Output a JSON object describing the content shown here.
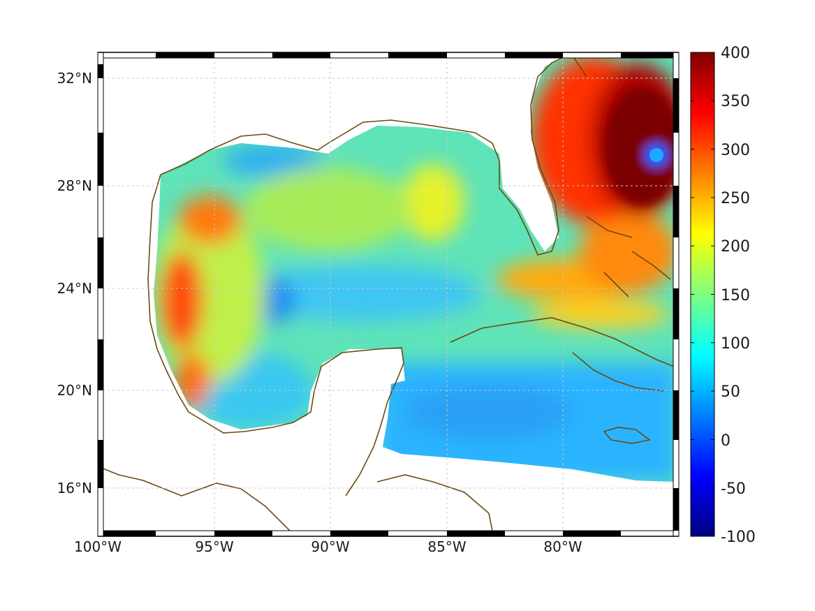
{
  "map": {
    "lon_labels": [
      "100°W",
      "95°W",
      "90°W",
      "85°W",
      "80°W"
    ],
    "lat_labels": [
      "32°N",
      "28°N",
      "24°N",
      "20°N",
      "16°N"
    ],
    "lon_values": [
      -100,
      -95,
      -90,
      -85,
      -80
    ],
    "lat_values": [
      32,
      28,
      24,
      20,
      16
    ],
    "lon_range": [
      -100,
      -75
    ],
    "lat_range": [
      14.2,
      33
    ],
    "grid": true,
    "coastline_color": "#6b4a12"
  },
  "colorbar": {
    "labels": [
      "400",
      "350",
      "300",
      "250",
      "200",
      "150",
      "100",
      "50",
      "0",
      "-50",
      "-100"
    ],
    "values": [
      400,
      350,
      300,
      250,
      200,
      150,
      100,
      50,
      0,
      -50,
      -100
    ],
    "range": [
      -100,
      400
    ],
    "colormap": "jet"
  }
}
